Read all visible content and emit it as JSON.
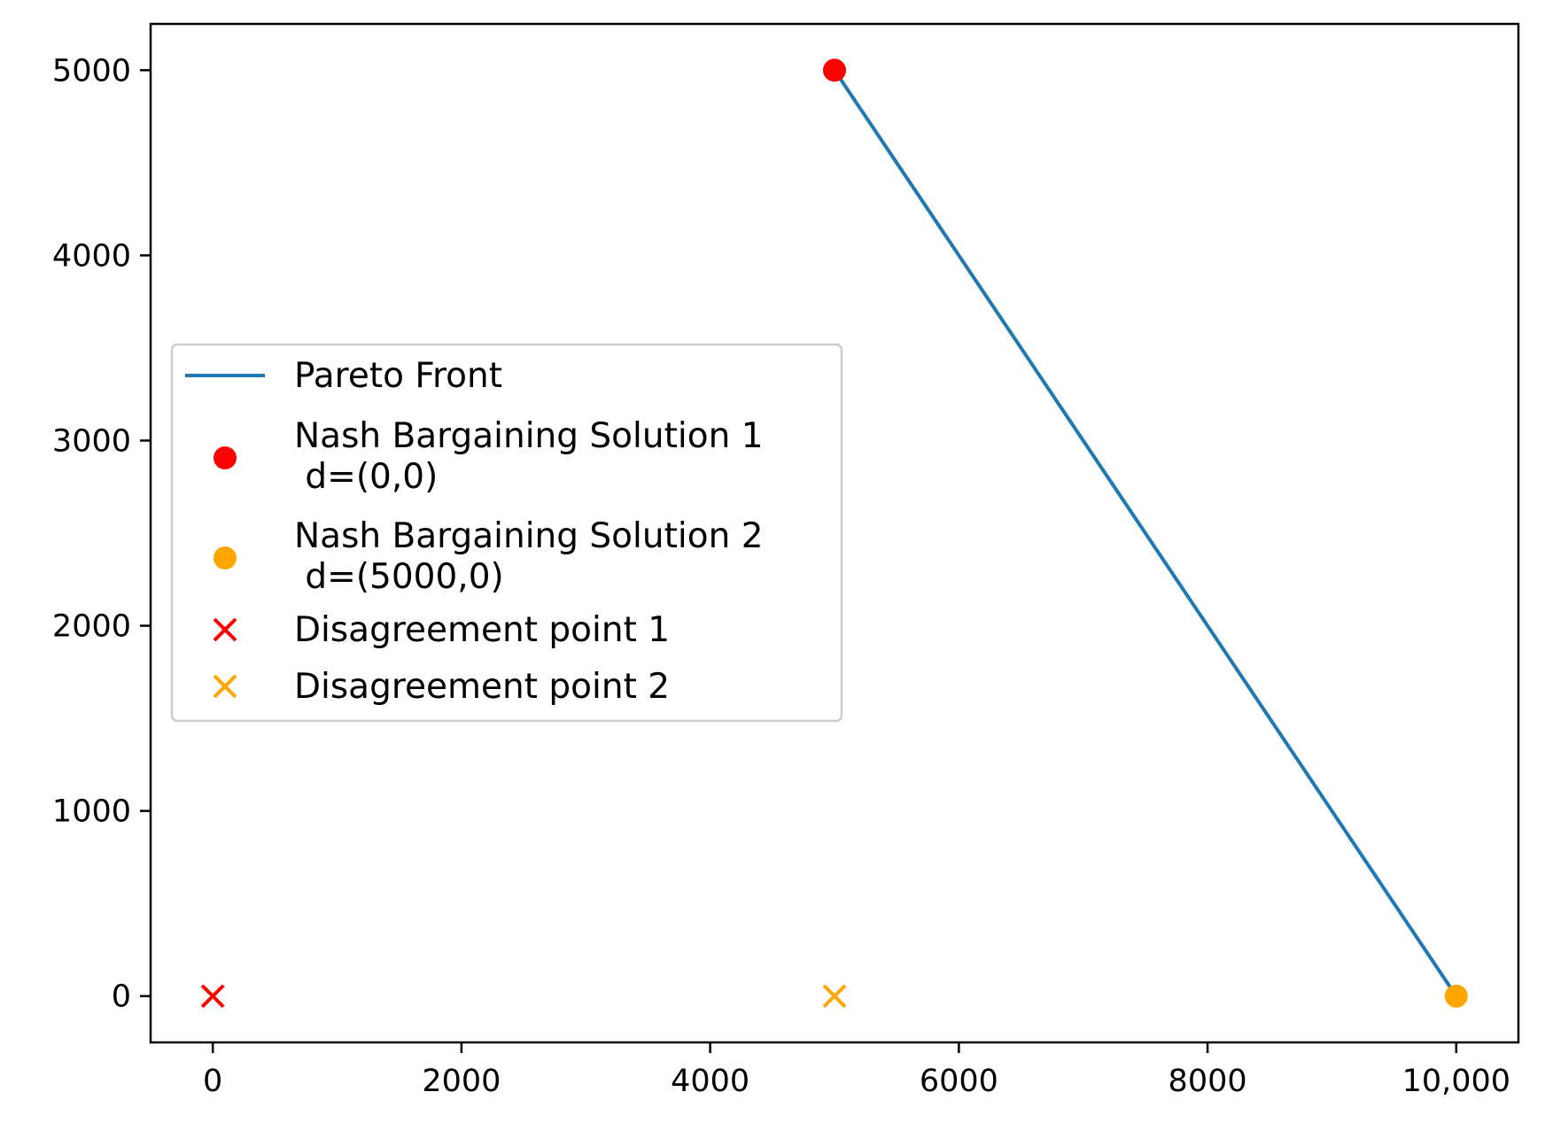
{
  "chart_data": {
    "type": "scatter",
    "title": "",
    "xlabel": "",
    "ylabel": "",
    "xlim": [
      -500,
      10500
    ],
    "ylim": [
      -250,
      5250
    ],
    "x_ticks": [
      {
        "value": 0,
        "label": "0"
      },
      {
        "value": 2000,
        "label": "2000"
      },
      {
        "value": 4000,
        "label": "4000"
      },
      {
        "value": 6000,
        "label": "6000"
      },
      {
        "value": 8000,
        "label": "8000"
      },
      {
        "value": 10000,
        "label": "10,000"
      }
    ],
    "y_ticks": [
      {
        "value": 0,
        "label": "0"
      },
      {
        "value": 1000,
        "label": "1000"
      },
      {
        "value": 2000,
        "label": "2000"
      },
      {
        "value": 3000,
        "label": "3000"
      },
      {
        "value": 4000,
        "label": "4000"
      },
      {
        "value": 5000,
        "label": "5000"
      }
    ],
    "grid": false,
    "legend_position": "center-left",
    "series": [
      {
        "name": "Pareto Front",
        "kind": "line",
        "color": "#1f77b4",
        "points": [
          [
            5000,
            5000
          ],
          [
            10000,
            0
          ]
        ]
      },
      {
        "name": "Nash Bargaining Solution 1\n d=(0,0)",
        "kind": "dot",
        "color": "#ff0000",
        "points": [
          [
            5000,
            5000
          ]
        ]
      },
      {
        "name": "Nash Bargaining Solution 2\n d=(5000,0)",
        "kind": "dot",
        "color": "#ffa500",
        "points": [
          [
            10000,
            0
          ]
        ]
      },
      {
        "name": "Disagreement point 1",
        "kind": "cross",
        "color": "#ff0000",
        "points": [
          [
            0,
            0
          ]
        ]
      },
      {
        "name": "Disagreement point 2",
        "kind": "cross",
        "color": "#ffa500",
        "points": [
          [
            5000,
            0
          ]
        ]
      }
    ]
  }
}
